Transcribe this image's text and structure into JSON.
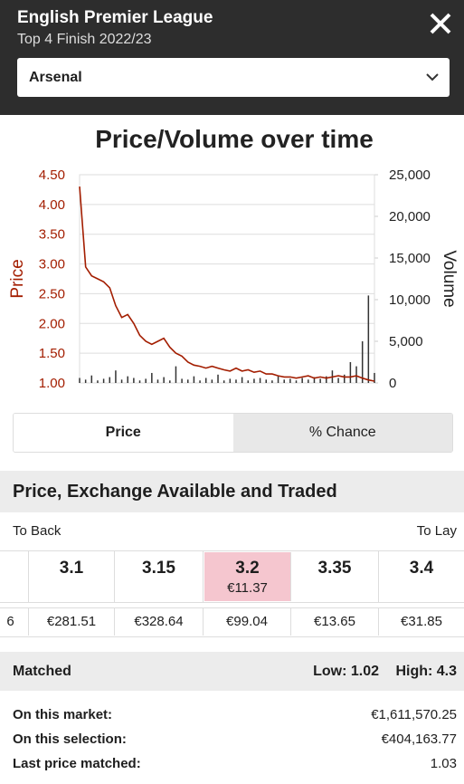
{
  "header": {
    "title": "English Premier League",
    "subtitle": "Top 4 Finish 2022/23",
    "selection": "Arsenal"
  },
  "chart_data": {
    "type": "line",
    "title": "Price/Volume over time",
    "ylabel": "Price",
    "y2label": "Volume",
    "ylim": [
      1,
      4.5
    ],
    "yticks": [
      {
        "value": 1,
        "label": "1.00"
      },
      {
        "value": 1.5,
        "label": "1.50"
      },
      {
        "value": 2,
        "label": "2.00"
      },
      {
        "value": 2.5,
        "label": "2.50"
      },
      {
        "value": 3,
        "label": "3.00"
      },
      {
        "value": 3.5,
        "label": "3.50"
      },
      {
        "value": 4,
        "label": "4.00"
      },
      {
        "value": 4.5,
        "label": "4.50"
      }
    ],
    "y2lim": [
      0,
      25000
    ],
    "y2ticks": [
      0,
      {
        "value": 5000,
        "label": "5,000"
      },
      {
        "value": 10000,
        "label": "10,000"
      },
      {
        "value": 15000,
        "label": "15,000"
      },
      {
        "value": 20000,
        "label": "20,000"
      },
      {
        "value": 25000,
        "label": "25,000"
      }
    ],
    "grid": true,
    "series": [
      {
        "name": "Price",
        "color": "#a31d00",
        "values": [
          4.3,
          2.95,
          2.8,
          2.75,
          2.7,
          2.6,
          2.3,
          2.1,
          2.15,
          2.0,
          1.8,
          1.7,
          1.65,
          1.7,
          1.75,
          1.6,
          1.5,
          1.45,
          1.35,
          1.3,
          1.28,
          1.25,
          1.28,
          1.25,
          1.22,
          1.2,
          1.25,
          1.2,
          1.22,
          1.18,
          1.2,
          1.15,
          1.15,
          1.12,
          1.1,
          1.1,
          1.08,
          1.1,
          1.12,
          1.08,
          1.1,
          1.08,
          1.1,
          1.12,
          1.1,
          1.1,
          1.12,
          1.08,
          1.05,
          1.03
        ]
      },
      {
        "name": "Volume",
        "color": "#333333",
        "axis": "y2",
        "values": [
          600,
          400,
          900,
          300,
          500,
          700,
          1500,
          400,
          800,
          600,
          300,
          500,
          1200,
          400,
          700,
          300,
          2000,
          500,
          400,
          800,
          300,
          600,
          400,
          1000,
          300,
          500,
          400,
          700,
          300,
          500,
          600,
          400,
          300,
          800,
          400,
          500,
          300,
          600,
          400,
          700,
          500,
          800,
          1500,
          600,
          1000,
          2500,
          2000,
          5000,
          10500,
          1200
        ]
      }
    ]
  },
  "tabs": [
    "Price",
    "% Chance"
  ],
  "section_title": "Price, Exchange Available and Traded",
  "ladder": {
    "to_back": "To Back",
    "to_lay": "To Lay",
    "prices": [
      "3.1",
      "3.15",
      "3.2",
      "3.35",
      "3.4"
    ],
    "traded_amount": "€11.37",
    "available": [
      "6",
      "€281.51",
      "€328.64",
      "€99.04",
      "€13.65",
      "€31.85"
    ]
  },
  "matched": {
    "label": "Matched",
    "low": "Low: 1.02",
    "high": "High: 4.3"
  },
  "stats": [
    [
      "On this market:",
      "€1,611,570.25"
    ],
    [
      "On this selection:",
      "€404,163.77"
    ],
    [
      "Last price matched:",
      "1.03"
    ]
  ]
}
